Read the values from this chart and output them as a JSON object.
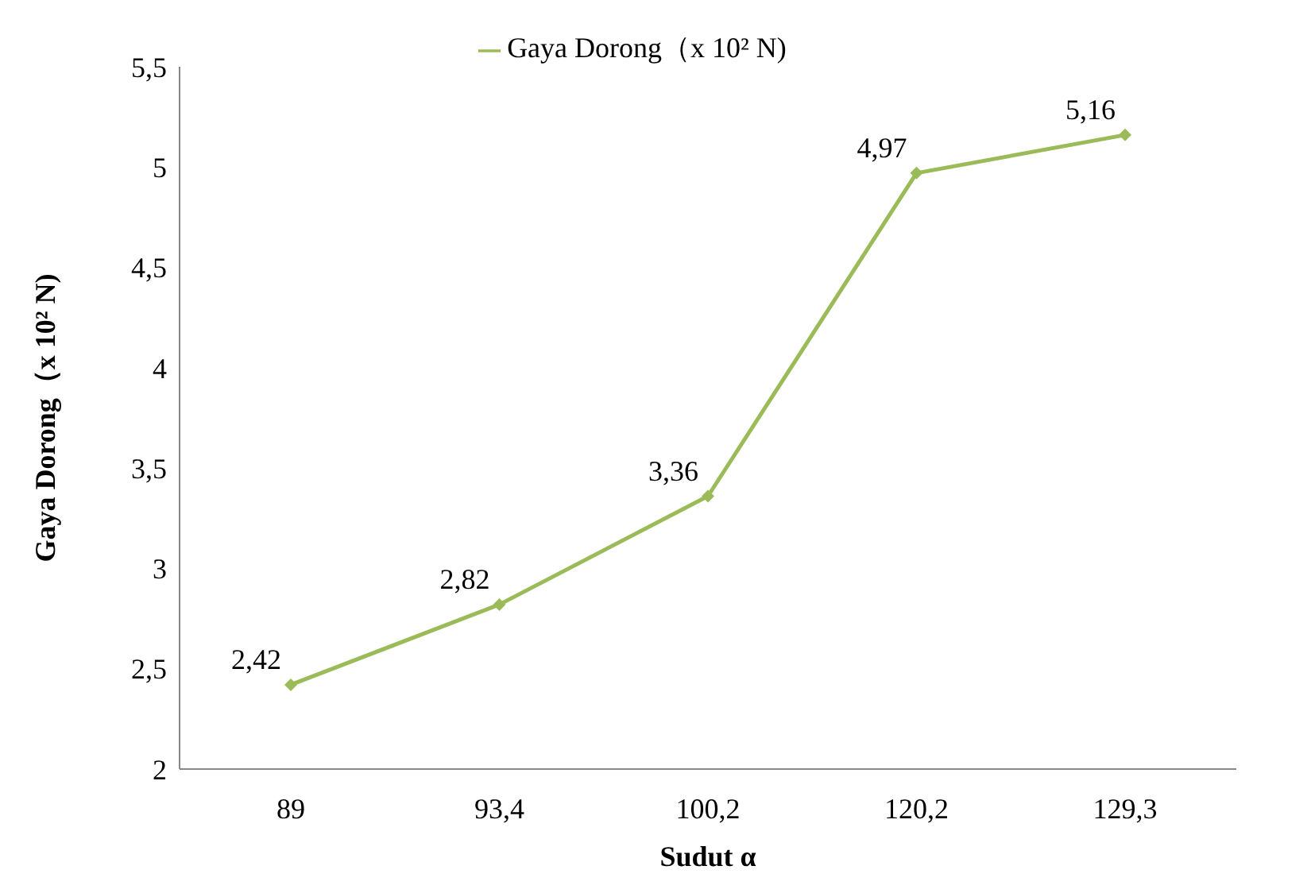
{
  "chart_data": {
    "type": "line",
    "xlabel": "Sudut α",
    "ylabel": "Gaya Dorong（x 10² N)",
    "categories": [
      "89",
      "93,4",
      "100,2",
      "120,2",
      "129,3"
    ],
    "series": [
      {
        "name": "Gaya Dorong（x 10² N)",
        "color": "#9bbb59",
        "values": [
          2.42,
          2.82,
          3.36,
          4.97,
          5.16
        ],
        "value_labels": [
          "2,42",
          "2,82",
          "3,36",
          "4,97",
          "5,16"
        ]
      }
    ],
    "ylim": [
      2,
      5.5
    ],
    "yticks": [
      {
        "value": 2,
        "label": "2"
      },
      {
        "value": 2.5,
        "label": "2,5"
      },
      {
        "value": 3,
        "label": "3"
      },
      {
        "value": 3.5,
        "label": "3,5"
      },
      {
        "value": 4,
        "label": "4"
      },
      {
        "value": 4.5,
        "label": "4,5"
      },
      {
        "value": 5,
        "label": "5"
      },
      {
        "value": 5.5,
        "label": "5,5"
      }
    ],
    "grid": false,
    "legend": "top",
    "marker": "diamond",
    "line_style": "solid"
  }
}
